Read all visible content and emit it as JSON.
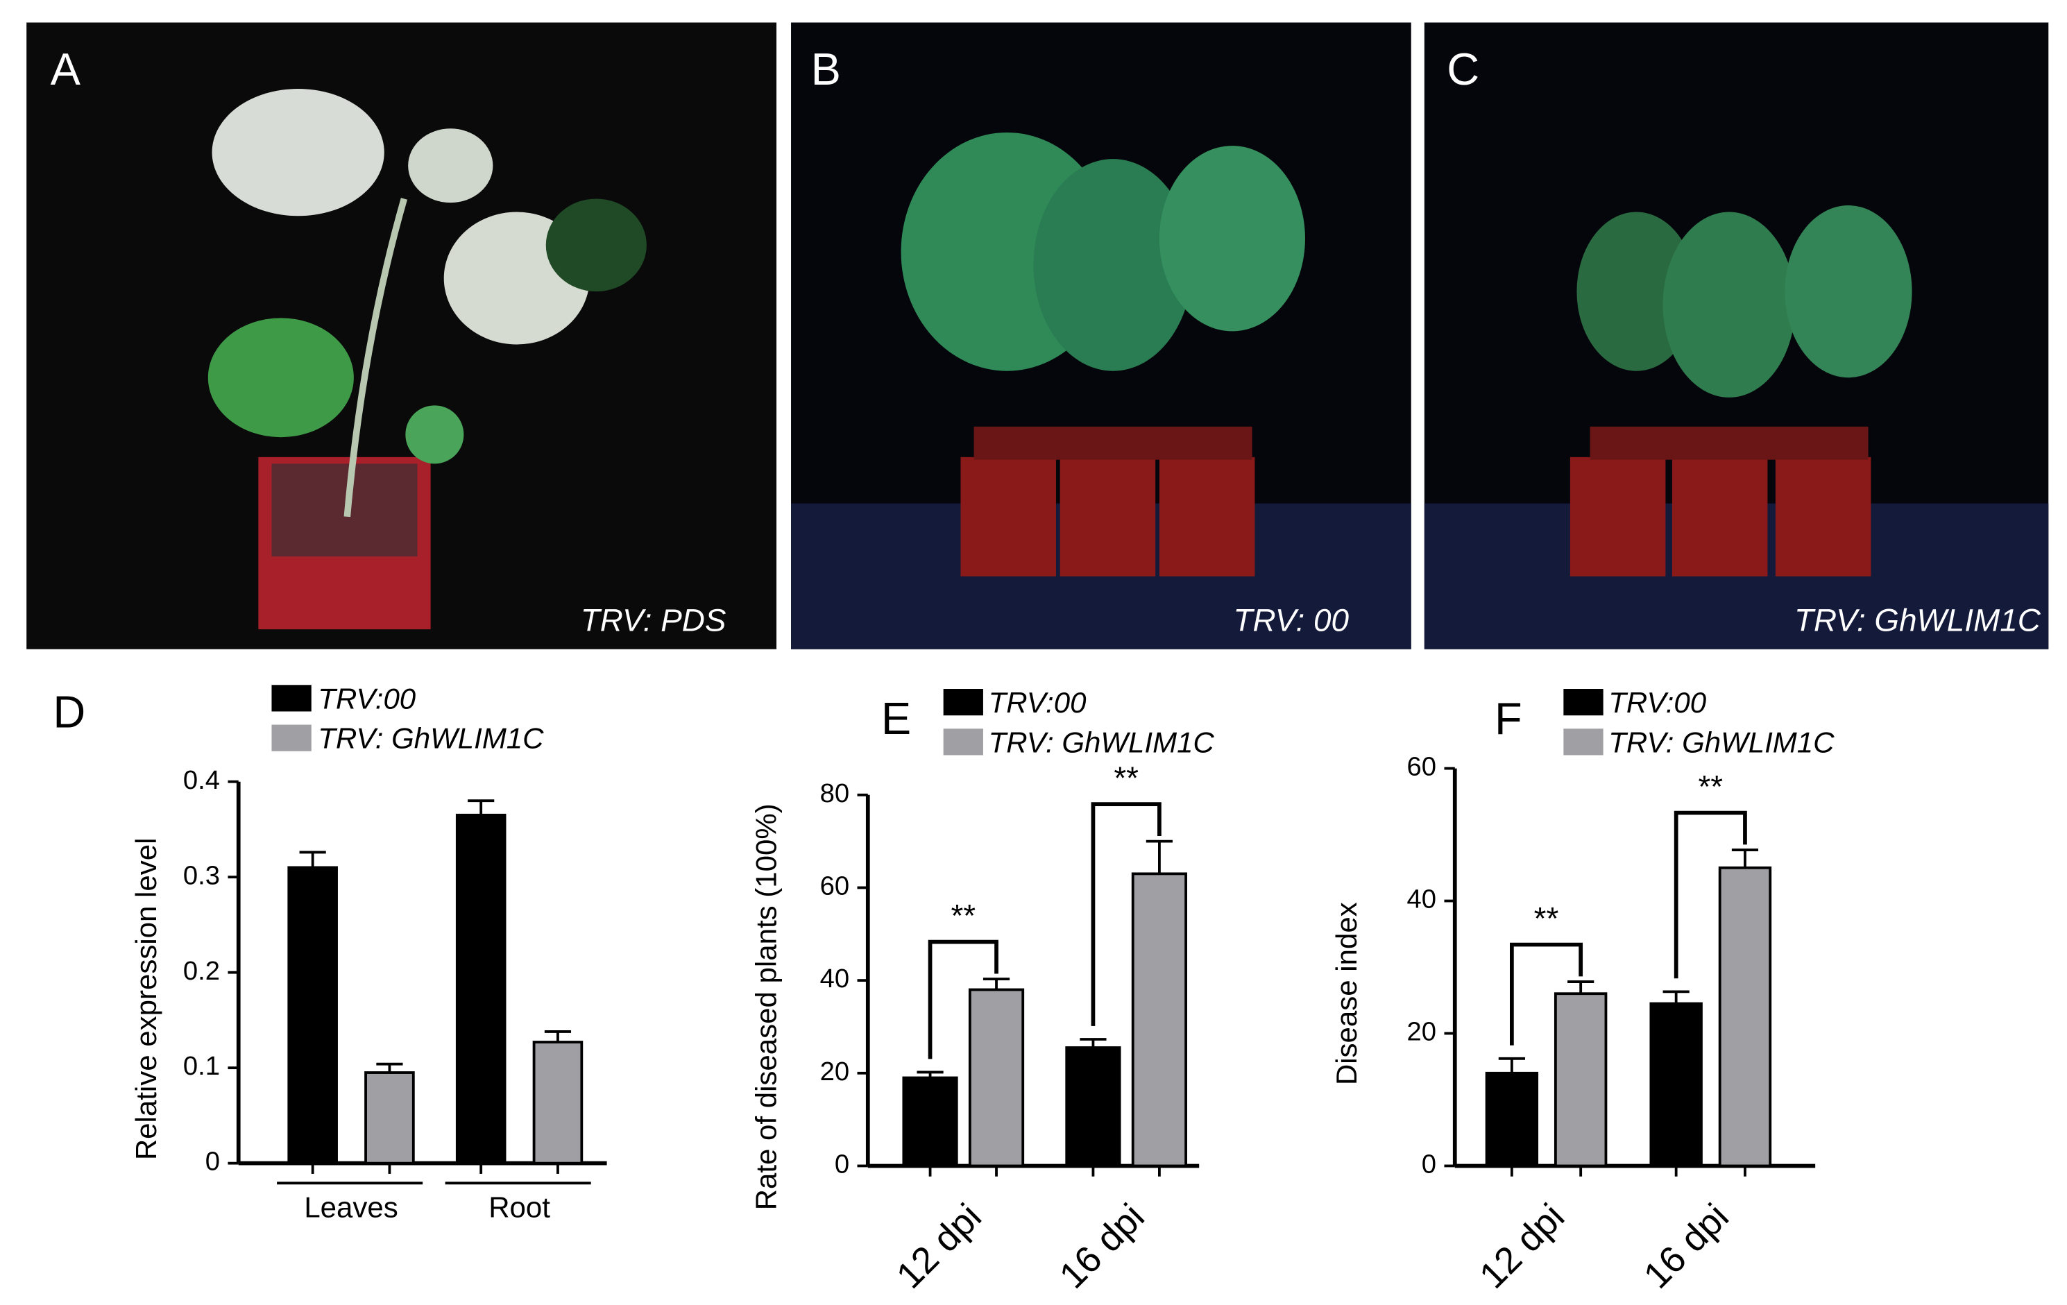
{
  "photos": [
    {
      "panel": "A",
      "label": "TRV: PDS"
    },
    {
      "panel": "B",
      "label": "TRV: 00"
    },
    {
      "panel": "C",
      "label": "TRV: GhWLIM1C"
    }
  ],
  "chart_data": [
    {
      "type": "bar",
      "panel": "D",
      "y_label": "Relative expression level",
      "categories": [
        "Leaves",
        "Root"
      ],
      "series": [
        {
          "name": "TRV:00",
          "color": "#000000",
          "values": [
            0.31,
            0.365
          ],
          "errors": [
            0.016,
            0.015
          ]
        },
        {
          "name": "TRV: GhWLIM1C",
          "color": "#a0a0a4",
          "values": [
            0.095,
            0.127
          ],
          "errors": [
            0.009,
            0.011
          ]
        }
      ],
      "ylim": [
        0,
        0.4
      ],
      "yticks": [
        0,
        0.1,
        0.2,
        0.3,
        0.4
      ]
    },
    {
      "type": "bar",
      "panel": "E",
      "y_label": "Rate of diseased plants (100%)",
      "categories": [
        "12 dpi",
        "16 dpi"
      ],
      "series": [
        {
          "name": "TRV:00",
          "color": "#000000",
          "values": [
            19,
            25.5
          ],
          "errors": [
            1.2,
            1.8
          ]
        },
        {
          "name": "TRV: GhWLIM1C",
          "color": "#a0a0a4",
          "values": [
            38,
            63
          ],
          "errors": [
            2.3,
            7
          ]
        }
      ],
      "annotations": [
        "**",
        "**"
      ],
      "ylim": [
        0,
        80
      ],
      "yticks": [
        0,
        20,
        40,
        60,
        80
      ]
    },
    {
      "type": "bar",
      "panel": "F",
      "y_label": "Disease index",
      "categories": [
        "12 dpi",
        "16 dpi"
      ],
      "series": [
        {
          "name": "TRV:00",
          "color": "#000000",
          "values": [
            14,
            24.5
          ],
          "errors": [
            2.2,
            1.8
          ]
        },
        {
          "name": "TRV: GhWLIM1C",
          "color": "#a0a0a4",
          "values": [
            26,
            45
          ],
          "errors": [
            1.8,
            2.7
          ]
        }
      ],
      "annotations": [
        "**",
        "**"
      ],
      "ylim": [
        0,
        60
      ],
      "yticks": [
        0,
        20,
        40,
        60
      ]
    }
  ]
}
